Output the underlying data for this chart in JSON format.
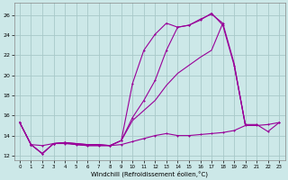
{
  "xlabel": "Windchill (Refroidissement éolien,°C)",
  "background_color": "#cce8e8",
  "grid_color": "#a8c8c8",
  "line_color": "#990099",
  "xlim": [
    -0.5,
    23.5
  ],
  "ylim": [
    11.5,
    27.2
  ],
  "yticks": [
    12,
    14,
    16,
    18,
    20,
    22,
    24,
    26
  ],
  "xticks": [
    0,
    1,
    2,
    3,
    4,
    5,
    6,
    7,
    8,
    9,
    10,
    11,
    12,
    13,
    14,
    15,
    16,
    17,
    18,
    19,
    20,
    21,
    22,
    23
  ],
  "series": [
    {
      "x": [
        0,
        1,
        2,
        3,
        4,
        5,
        6,
        7,
        8,
        9,
        10,
        11,
        12,
        13,
        14,
        15,
        16,
        17,
        18,
        19,
        20,
        21,
        22,
        23
      ],
      "y": [
        15.3,
        13.1,
        13.0,
        13.2,
        13.2,
        13.1,
        13.0,
        13.0,
        13.0,
        13.1,
        13.4,
        13.7,
        14.0,
        14.2,
        14.0,
        14.0,
        14.1,
        14.2,
        14.3,
        14.5,
        15.0,
        15.0,
        15.1,
        15.3
      ],
      "marker": "+"
    },
    {
      "x": [
        0,
        1,
        2,
        3,
        4,
        5,
        6,
        7,
        8,
        9,
        10,
        11,
        12,
        13,
        14,
        15,
        16,
        17,
        18,
        19,
        20,
        21,
        22,
        23
      ],
      "y": [
        15.3,
        13.1,
        12.2,
        13.2,
        13.3,
        13.2,
        13.1,
        13.1,
        13.0,
        13.5,
        19.2,
        22.5,
        24.1,
        25.2,
        24.8,
        25.0,
        25.6,
        26.1,
        25.2,
        null,
        null,
        null,
        null,
        null
      ],
      "marker": "+"
    },
    {
      "x": [
        0,
        1,
        2,
        3,
        4,
        5,
        6,
        7,
        8,
        9,
        10,
        11,
        12,
        13,
        14,
        15,
        16,
        17,
        18,
        19,
        20,
        21,
        22,
        23
      ],
      "y": [
        15.3,
        13.1,
        12.2,
        13.2,
        13.3,
        13.1,
        13.0,
        13.0,
        13.0,
        13.5,
        15.5,
        16.5,
        17.5,
        19.0,
        20.2,
        21.0,
        21.8,
        22.5,
        25.2,
        21.2,
        15.0,
        null,
        null,
        null
      ],
      "marker": null
    },
    {
      "x": [
        0,
        1,
        2,
        3,
        4,
        5,
        6,
        7,
        8,
        9,
        10,
        11,
        12,
        13,
        14,
        15,
        16,
        17,
        18,
        19,
        20,
        21,
        22,
        23
      ],
      "y": [
        15.3,
        13.1,
        12.2,
        13.2,
        13.3,
        13.2,
        13.1,
        13.1,
        13.0,
        13.5,
        15.8,
        17.5,
        19.5,
        22.5,
        24.8,
        25.0,
        25.5,
        26.2,
        25.0,
        21.0,
        15.1,
        15.1,
        14.4,
        15.3
      ],
      "marker": "+"
    },
    {
      "x": [
        0,
        1,
        2,
        3,
        4,
        5,
        6,
        7,
        8,
        9,
        10,
        11,
        12,
        13,
        14,
        15,
        16,
        17,
        18,
        19,
        20,
        21,
        22,
        23
      ],
      "y": [
        null,
        null,
        null,
        null,
        null,
        null,
        null,
        null,
        null,
        null,
        null,
        null,
        null,
        null,
        null,
        null,
        null,
        null,
        null,
        21.1,
        15.0,
        null,
        null,
        null
      ],
      "marker": null
    }
  ]
}
